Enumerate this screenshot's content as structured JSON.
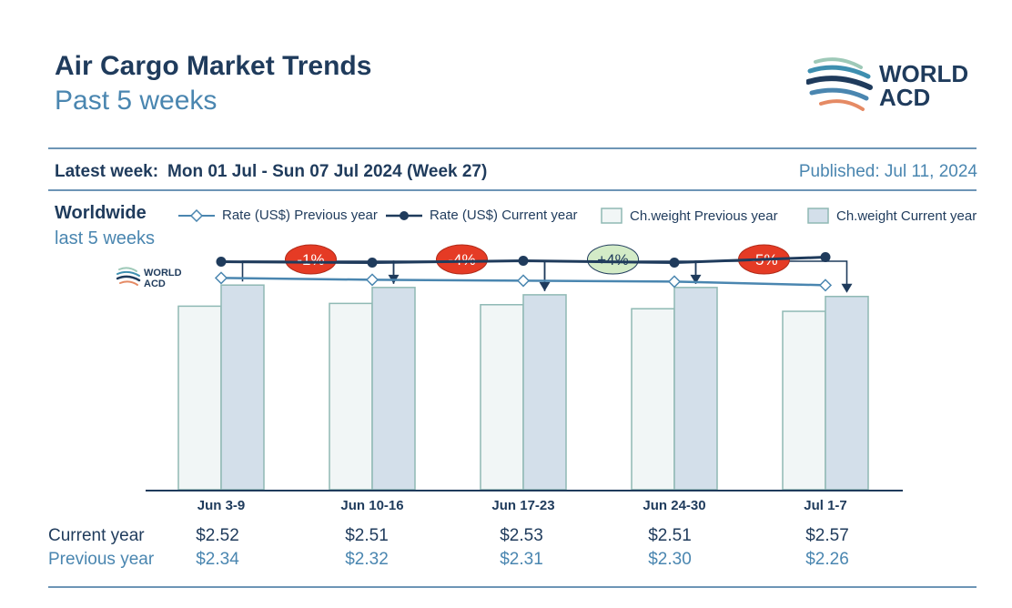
{
  "header": {
    "title": "Air Cargo Market Trends",
    "subtitle": "Past 5 weeks",
    "logo_line1": "WORLD",
    "logo_line2": "ACD"
  },
  "info_bar": {
    "latest_week_label": "Latest week:",
    "latest_week_value": "Mon 01 Jul - Sun 07 Jul 2024 (Week 27)",
    "published": "Published: Jul 11, 2024"
  },
  "region": {
    "title": "Worldwide",
    "subtitle": "last 5 weeks"
  },
  "legend": {
    "rate_prev": "Rate (US$) Previous year",
    "rate_curr": "Rate (US$) Current year",
    "weight_prev": "Ch.weight Previous year",
    "weight_curr": "Ch.weight Current year"
  },
  "colors": {
    "dark_navy": "#1f3b5c",
    "light_blue": "#4a86b0",
    "bar_prev_fill": "#f1f6f6",
    "bar_curr_fill": "#d3dfea",
    "bar_border": "#8fb9b4",
    "badge_negative": "#e53b25",
    "badge_positive": "#d3ebc7"
  },
  "table": {
    "current_label": "Current year",
    "previous_label": "Previous year"
  },
  "chart_data": {
    "type": "bar",
    "categories": [
      "Jun 3-9",
      "Jun 10-16",
      "Jun 17-23",
      "Jun 24-30",
      "Jul 1-7"
    ],
    "series": [
      {
        "name": "Ch.weight Previous year",
        "kind": "bar",
        "values": [
          100,
          101.5,
          100.8,
          98.6,
          97.2
        ]
      },
      {
        "name": "Ch.weight Current year",
        "kind": "bar",
        "values": [
          111.5,
          110.2,
          106.2,
          110.2,
          105.3
        ]
      },
      {
        "name": "Rate (US$) Previous year",
        "kind": "line",
        "values": [
          2.34,
          2.32,
          2.31,
          2.3,
          2.26
        ]
      },
      {
        "name": "Rate (US$) Current year",
        "kind": "line",
        "values": [
          2.52,
          2.51,
          2.53,
          2.51,
          2.57
        ]
      }
    ],
    "rate_current_labels": [
      "$2.52",
      "$2.51",
      "$2.53",
      "$2.51",
      "$2.57"
    ],
    "rate_previous_labels": [
      "$2.34",
      "$2.32",
      "$2.31",
      "$2.30",
      "$2.26"
    ],
    "week_changes": [
      "-1%",
      "-4%",
      "+4%",
      "-5%"
    ],
    "bar_ylim": [
      0,
      124
    ],
    "rate_ylim": [
      0,
      5
    ]
  }
}
